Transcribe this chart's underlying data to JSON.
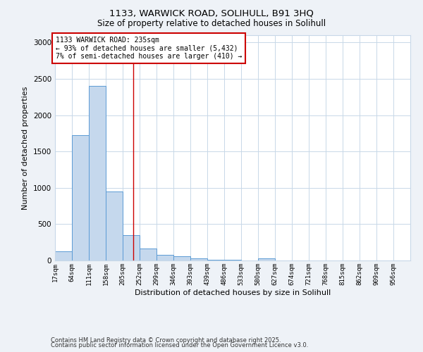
{
  "title1": "1133, WARWICK ROAD, SOLIHULL, B91 3HQ",
  "title2": "Size of property relative to detached houses in Solihull",
  "xlabel": "Distribution of detached houses by size in Solihull",
  "ylabel": "Number of detached properties",
  "bin_labels": [
    "17sqm",
    "64sqm",
    "111sqm",
    "158sqm",
    "205sqm",
    "252sqm",
    "299sqm",
    "346sqm",
    "393sqm",
    "439sqm",
    "486sqm",
    "533sqm",
    "580sqm",
    "627sqm",
    "674sqm",
    "721sqm",
    "768sqm",
    "815sqm",
    "862sqm",
    "909sqm",
    "956sqm"
  ],
  "bin_edges": [
    17,
    64,
    111,
    158,
    205,
    252,
    299,
    346,
    393,
    439,
    486,
    533,
    580,
    627,
    674,
    721,
    768,
    815,
    862,
    909,
    956
  ],
  "bar_heights": [
    125,
    1725,
    2400,
    950,
    350,
    160,
    80,
    55,
    30,
    12,
    8,
    4,
    25,
    2,
    1,
    1,
    0,
    0,
    0,
    0,
    0
  ],
  "bar_color": "#c5d8ed",
  "bar_edgecolor": "#5b9bd5",
  "grid_color": "#c8d8e8",
  "property_size": 235,
  "vline_color": "#cc0000",
  "annotation_text": "1133 WARWICK ROAD: 235sqm\n← 93% of detached houses are smaller (5,432)\n7% of semi-detached houses are larger (410) →",
  "annotation_bbox_edgecolor": "#cc0000",
  "annotation_bbox_facecolor": "#ffffff",
  "ylim": [
    0,
    3100
  ],
  "yticks": [
    0,
    500,
    1000,
    1500,
    2000,
    2500,
    3000
  ],
  "background_color": "#eef2f7",
  "plot_background": "#ffffff",
  "footer1": "Contains HM Land Registry data © Crown copyright and database right 2025.",
  "footer2": "Contains public sector information licensed under the Open Government Licence v3.0."
}
